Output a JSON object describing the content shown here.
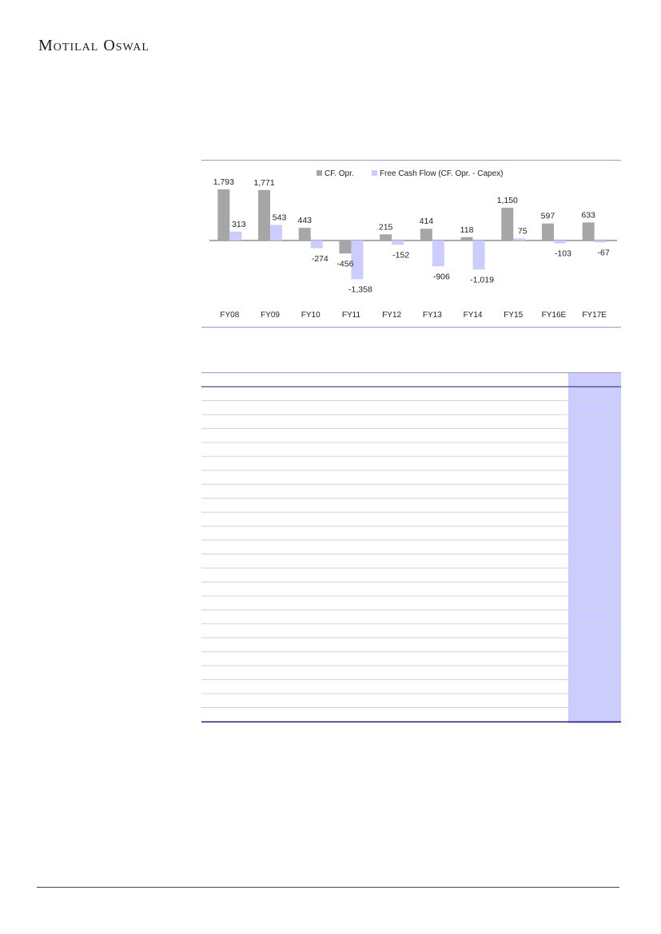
{
  "header": {
    "brand": "Motilal Oswal"
  },
  "colors": {
    "cf": "#a6a6a6",
    "fcf": "#ccccff",
    "accent": "#1f1f6b"
  },
  "chart_data": {
    "type": "bar",
    "categories": [
      "FY08",
      "FY09",
      "FY10",
      "FY11",
      "FY12",
      "FY13",
      "FY14",
      "FY15",
      "FY16E",
      "FY17E"
    ],
    "series": [
      {
        "name": "CF. Opr.",
        "values": [
          1793,
          1771,
          443,
          -456,
          215,
          414,
          118,
          1150,
          597,
          633
        ],
        "labels": [
          "1,793",
          "1,771",
          "443",
          "-456",
          "215",
          "414",
          "118",
          "1,150",
          "597",
          "633"
        ]
      },
      {
        "name": "Free Cash Flow (CF. Opr. - Capex)",
        "values": [
          313,
          543,
          -274,
          -1358,
          -152,
          -906,
          -1019,
          75,
          -103,
          -67
        ],
        "labels": [
          "313",
          "543",
          "-274",
          "-1,358",
          "-152",
          "-906",
          "-1,019",
          "75",
          "-103",
          "-67"
        ]
      }
    ],
    "legend_position": "top",
    "grid": false
  },
  "table": {
    "row_count": 24
  }
}
